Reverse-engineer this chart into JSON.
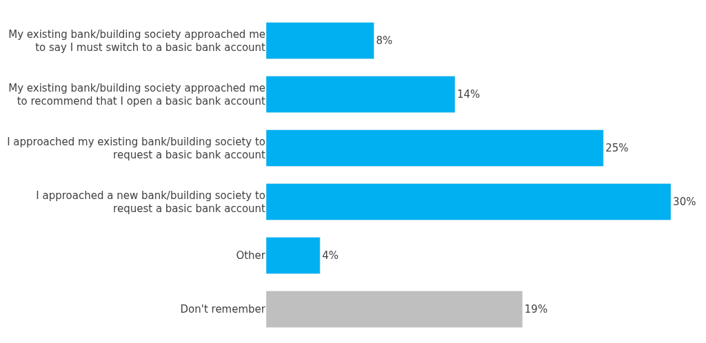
{
  "chart_data": {
    "type": "bar",
    "orientation": "horizontal",
    "categories": [
      "My existing bank/building society approached me to say I must switch to a basic bank account",
      "My existing bank/building society approached me to recommend that I open a basic bank account",
      "I approached my existing bank/building society to request a basic bank account",
      "I approached a new bank/building society to request a basic bank account",
      "Other",
      "Don't remember"
    ],
    "values": [
      8,
      14,
      25,
      30,
      4,
      19
    ],
    "colors": [
      "#00b0f0",
      "#00b0f0",
      "#00b0f0",
      "#00b0f0",
      "#00b0f0",
      "#bfbfbf"
    ],
    "value_labels": [
      "8%",
      "14%",
      "25%",
      "30%",
      "4%",
      "19%"
    ]
  }
}
